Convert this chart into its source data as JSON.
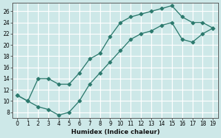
{
  "xlabel": "Humidex (Indice chaleur)",
  "line_color": "#2d7a6e",
  "bg_color": "#cde8e8",
  "grid_color": "#ffffff",
  "xlim": [
    -0.5,
    19.5
  ],
  "ylim": [
    7,
    27.5
  ],
  "xticks": [
    0,
    1,
    2,
    3,
    4,
    5,
    6,
    7,
    8,
    9,
    10,
    11,
    12,
    13,
    14,
    15,
    16,
    17,
    18,
    19
  ],
  "yticks": [
    8,
    10,
    12,
    14,
    16,
    18,
    20,
    22,
    24,
    26
  ],
  "upper_x": [
    0,
    1,
    2,
    3,
    4,
    5,
    6,
    7,
    8,
    9,
    10,
    11,
    12,
    13,
    14,
    15,
    16,
    17,
    18,
    19
  ],
  "upper_y": [
    11,
    10,
    14,
    14,
    13,
    13,
    15,
    17.5,
    18.5,
    21.5,
    24,
    25,
    25.5,
    26,
    26.5,
    27,
    25,
    24,
    24,
    23
  ],
  "lower_x": [
    0,
    1,
    2,
    3,
    4,
    5,
    6,
    7,
    8,
    9,
    10,
    11,
    12,
    13,
    14,
    15,
    16,
    17,
    18,
    19
  ],
  "lower_y": [
    11,
    10,
    9,
    8.5,
    7.5,
    8,
    10,
    13,
    15,
    17,
    19,
    21,
    22,
    22.5,
    23.5,
    24,
    21,
    20.5,
    22,
    23
  ]
}
